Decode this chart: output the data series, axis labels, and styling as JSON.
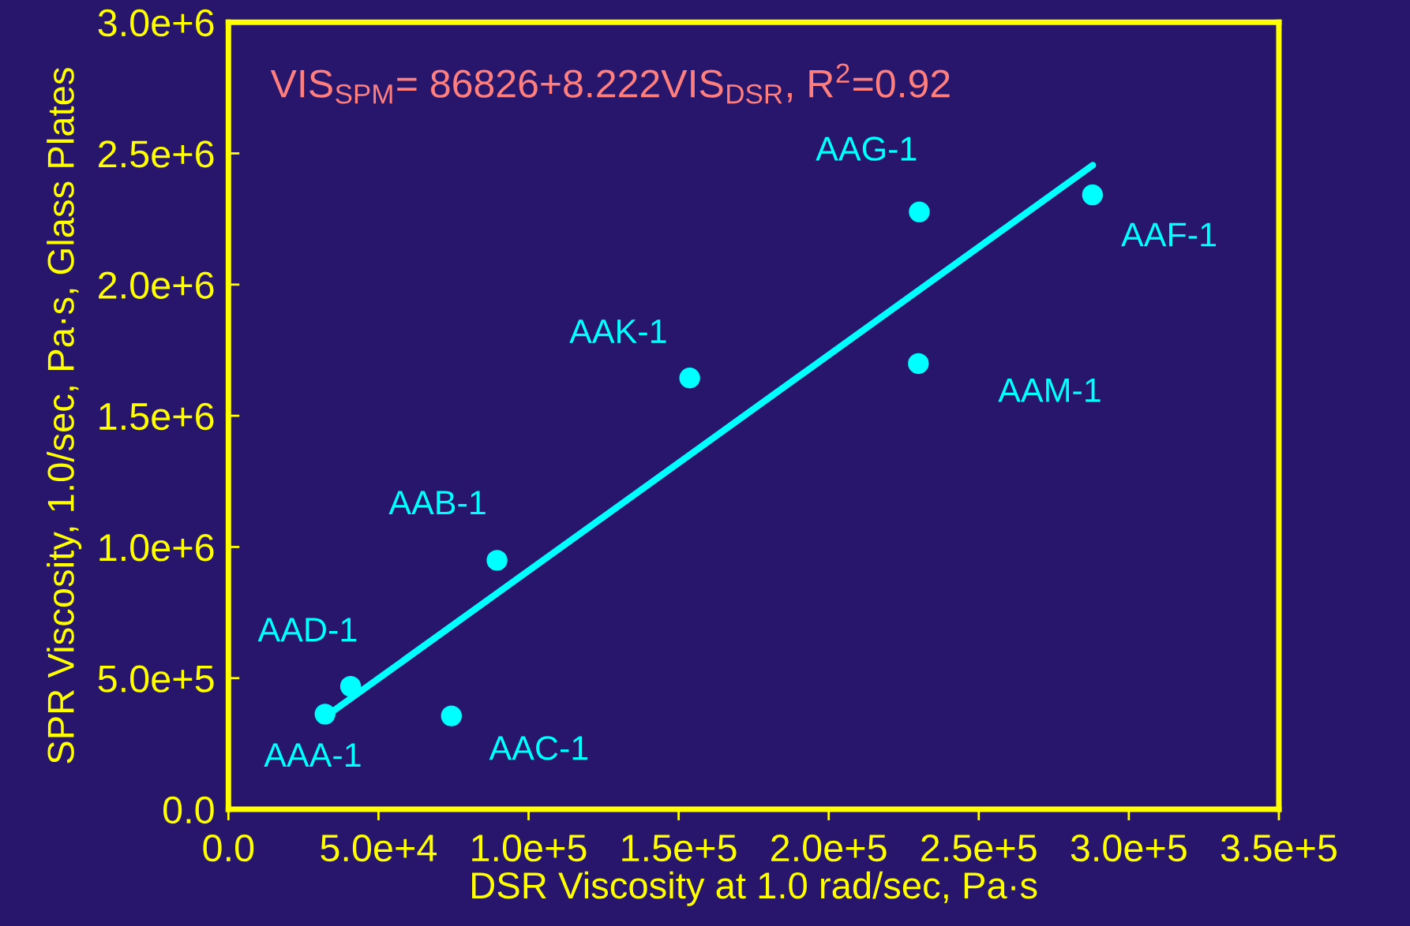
{
  "chart_data": {
    "type": "scatter",
    "xlabel": "DSR Viscosity at 1.0 rad/sec, Pa·s",
    "ylabel": "SPR Viscosity, 1.0/sec, Pa·s, Glass Plates",
    "x": [
      32200,
      40700,
      74300,
      89500,
      153700,
      229900,
      230200,
      287900
    ],
    "series": [
      {
        "color": "#00ffff",
        "values": [
          363000,
          469000,
          356000,
          949000,
          1644000,
          1699000,
          2277000,
          2342000
        ],
        "marker": "circle"
      },
      {
        "type": "line",
        "color": "#00ffff",
        "x": [
          32200,
          288000
        ],
        "values": [
          352000,
          2455000
        ],
        "marker": "none",
        "line_style": "solid"
      }
    ],
    "xlim": [
      0,
      350000
    ],
    "ylim": [
      0,
      3000000
    ],
    "xticks": [
      {
        "value": 0,
        "label": "0.0"
      },
      {
        "value": 50000,
        "label": "5.0e+4"
      },
      {
        "value": 100000,
        "label": "1.0e+5"
      },
      {
        "value": 150000,
        "label": "1.5e+5"
      },
      {
        "value": 200000,
        "label": "2.0e+5"
      },
      {
        "value": 250000,
        "label": "2.5e+5"
      },
      {
        "value": 300000,
        "label": "3.0e+5"
      },
      {
        "value": 350000,
        "label": "3.5e+5"
      }
    ],
    "yticks": [
      {
        "value": 0,
        "label": "0.0"
      },
      {
        "value": 500000,
        "label": "5.0e+5"
      },
      {
        "value": 1000000,
        "label": "1.0e+6"
      },
      {
        "value": 1500000,
        "label": "1.5e+6"
      },
      {
        "value": 2000000,
        "label": "2.0e+6"
      },
      {
        "value": 2500000,
        "label": "2.5e+6"
      },
      {
        "value": 3000000,
        "label": "3.0e+6"
      }
    ],
    "grid": false,
    "annotations": [
      "VIS$_{SPM}$= 86826+8.222VIS$_{DSR}$, R$^{2}$=0.92",
      {
        "text": "AAA-1",
        "x": 32200,
        "y": 363000
      },
      {
        "text": "AAD-1",
        "x": 40700,
        "y": 469000
      },
      {
        "text": "AAC-1",
        "x": 74300,
        "y": 356000
      },
      {
        "text": "AAB-1",
        "x": 89500,
        "y": 949000
      },
      {
        "text": "AAK-1",
        "x": 153700,
        "y": 1644000
      },
      {
        "text": "AAM-1",
        "x": 229900,
        "y": 1699000
      },
      {
        "text": "AAG-1",
        "x": 230200,
        "y": 2277000
      },
      {
        "text": "AAF-1",
        "x": 287900,
        "y": 2342000
      }
    ]
  }
}
